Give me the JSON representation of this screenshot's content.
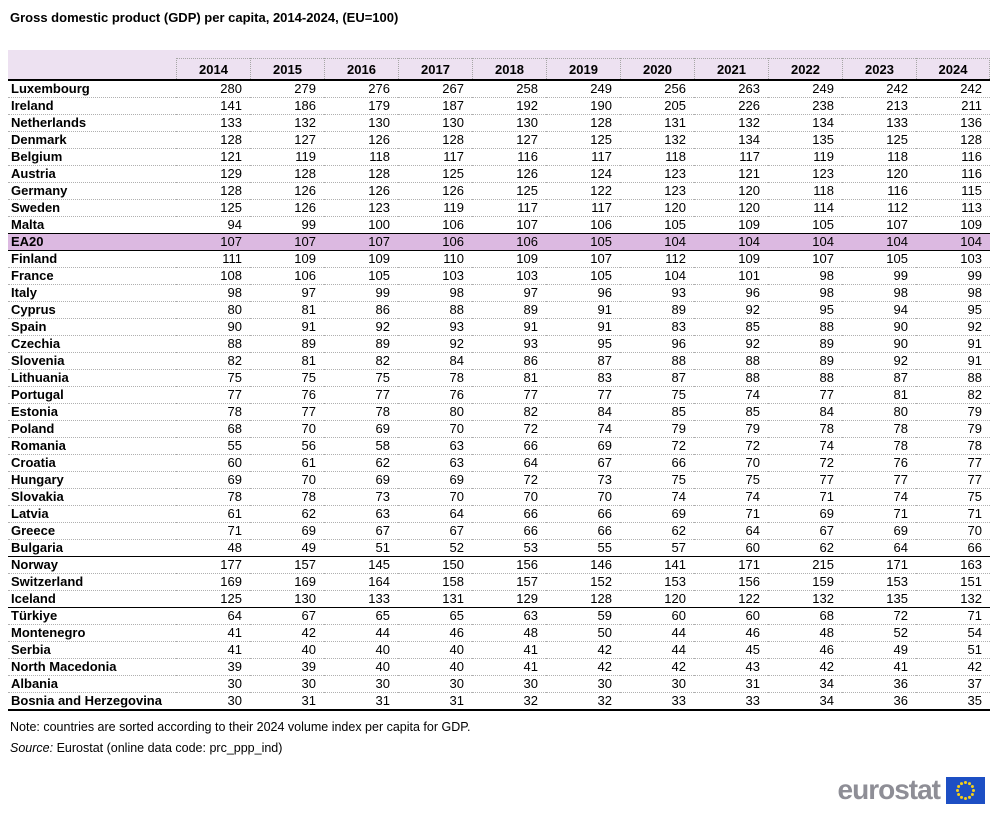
{
  "title": "Gross domestic product (GDP) per capita, 2014-2024, (EU=100)",
  "chart_data": {
    "type": "table",
    "title": "Gross domestic product (GDP) per capita, 2014-2024, (EU=100)",
    "columns": [
      "2014",
      "2015",
      "2016",
      "2017",
      "2018",
      "2019",
      "2020",
      "2021",
      "2022",
      "2023",
      "2024"
    ],
    "rows": [
      {
        "name": "Luxembourg",
        "values": [
          280,
          279,
          276,
          267,
          258,
          249,
          256,
          263,
          249,
          242,
          242
        ],
        "highlight": false,
        "divider_after": false
      },
      {
        "name": "Ireland",
        "values": [
          141,
          186,
          179,
          187,
          192,
          190,
          205,
          226,
          238,
          213,
          211
        ],
        "highlight": false,
        "divider_after": false
      },
      {
        "name": "Netherlands",
        "values": [
          133,
          132,
          130,
          130,
          130,
          128,
          131,
          132,
          134,
          133,
          136
        ],
        "highlight": false,
        "divider_after": false
      },
      {
        "name": "Denmark",
        "values": [
          128,
          127,
          126,
          128,
          127,
          125,
          132,
          134,
          135,
          125,
          128
        ],
        "highlight": false,
        "divider_after": false
      },
      {
        "name": "Belgium",
        "values": [
          121,
          119,
          118,
          117,
          116,
          117,
          118,
          117,
          119,
          118,
          116
        ],
        "highlight": false,
        "divider_after": false
      },
      {
        "name": "Austria",
        "values": [
          129,
          128,
          128,
          125,
          126,
          124,
          123,
          121,
          123,
          120,
          116
        ],
        "highlight": false,
        "divider_after": false
      },
      {
        "name": "Germany",
        "values": [
          128,
          126,
          126,
          126,
          125,
          122,
          123,
          120,
          118,
          116,
          115
        ],
        "highlight": false,
        "divider_after": false
      },
      {
        "name": "Sweden",
        "values": [
          125,
          126,
          123,
          119,
          117,
          117,
          120,
          120,
          114,
          112,
          113
        ],
        "highlight": false,
        "divider_after": false
      },
      {
        "name": "Malta",
        "values": [
          94,
          99,
          100,
          106,
          107,
          106,
          105,
          109,
          105,
          107,
          109
        ],
        "highlight": false,
        "divider_after": true
      },
      {
        "name": "EA20",
        "values": [
          107,
          107,
          107,
          106,
          106,
          105,
          104,
          104,
          104,
          104,
          104
        ],
        "highlight": true,
        "divider_after": true
      },
      {
        "name": "Finland",
        "values": [
          111,
          109,
          109,
          110,
          109,
          107,
          112,
          109,
          107,
          105,
          103
        ],
        "highlight": false,
        "divider_after": false
      },
      {
        "name": "France",
        "values": [
          108,
          106,
          105,
          103,
          103,
          105,
          104,
          101,
          98,
          99,
          99
        ],
        "highlight": false,
        "divider_after": false
      },
      {
        "name": "Italy",
        "values": [
          98,
          97,
          99,
          98,
          97,
          96,
          93,
          96,
          98,
          98,
          98
        ],
        "highlight": false,
        "divider_after": false
      },
      {
        "name": "Cyprus",
        "values": [
          80,
          81,
          86,
          88,
          89,
          91,
          89,
          92,
          95,
          94,
          95
        ],
        "highlight": false,
        "divider_after": false
      },
      {
        "name": "Spain",
        "values": [
          90,
          91,
          92,
          93,
          91,
          91,
          83,
          85,
          88,
          90,
          92
        ],
        "highlight": false,
        "divider_after": false
      },
      {
        "name": "Czechia",
        "values": [
          88,
          89,
          89,
          92,
          93,
          95,
          96,
          92,
          89,
          90,
          91
        ],
        "highlight": false,
        "divider_after": false
      },
      {
        "name": "Slovenia",
        "values": [
          82,
          81,
          82,
          84,
          86,
          87,
          88,
          88,
          89,
          92,
          91
        ],
        "highlight": false,
        "divider_after": false
      },
      {
        "name": "Lithuania",
        "values": [
          75,
          75,
          75,
          78,
          81,
          83,
          87,
          88,
          88,
          87,
          88
        ],
        "highlight": false,
        "divider_after": false
      },
      {
        "name": "Portugal",
        "values": [
          77,
          76,
          77,
          76,
          77,
          77,
          75,
          74,
          77,
          81,
          82
        ],
        "highlight": false,
        "divider_after": false
      },
      {
        "name": "Estonia",
        "values": [
          78,
          77,
          78,
          80,
          82,
          84,
          85,
          85,
          84,
          80,
          79
        ],
        "highlight": false,
        "divider_after": false
      },
      {
        "name": "Poland",
        "values": [
          68,
          70,
          69,
          70,
          72,
          74,
          79,
          79,
          78,
          78,
          79
        ],
        "highlight": false,
        "divider_after": false
      },
      {
        "name": "Romania",
        "values": [
          55,
          56,
          58,
          63,
          66,
          69,
          72,
          72,
          74,
          78,
          78
        ],
        "highlight": false,
        "divider_after": false
      },
      {
        "name": "Croatia",
        "values": [
          60,
          61,
          62,
          63,
          64,
          67,
          66,
          70,
          72,
          76,
          77
        ],
        "highlight": false,
        "divider_after": false
      },
      {
        "name": "Hungary",
        "values": [
          69,
          70,
          69,
          69,
          72,
          73,
          75,
          75,
          77,
          77,
          77
        ],
        "highlight": false,
        "divider_after": false
      },
      {
        "name": "Slovakia",
        "values": [
          78,
          78,
          73,
          70,
          70,
          70,
          74,
          74,
          71,
          74,
          75
        ],
        "highlight": false,
        "divider_after": false
      },
      {
        "name": "Latvia",
        "values": [
          61,
          62,
          63,
          64,
          66,
          66,
          69,
          71,
          69,
          71,
          71
        ],
        "highlight": false,
        "divider_after": false
      },
      {
        "name": "Greece",
        "values": [
          71,
          69,
          67,
          67,
          66,
          66,
          62,
          64,
          67,
          69,
          70
        ],
        "highlight": false,
        "divider_after": false
      },
      {
        "name": "Bulgaria",
        "values": [
          48,
          49,
          51,
          52,
          53,
          55,
          57,
          60,
          62,
          64,
          66
        ],
        "highlight": false,
        "divider_after": true
      },
      {
        "name": "Norway",
        "values": [
          177,
          157,
          145,
          150,
          156,
          146,
          141,
          171,
          215,
          171,
          163
        ],
        "highlight": false,
        "divider_after": false
      },
      {
        "name": "Switzerland",
        "values": [
          169,
          169,
          164,
          158,
          157,
          152,
          153,
          156,
          159,
          153,
          151
        ],
        "highlight": false,
        "divider_after": false
      },
      {
        "name": "Iceland",
        "values": [
          125,
          130,
          133,
          131,
          129,
          128,
          120,
          122,
          132,
          135,
          132
        ],
        "highlight": false,
        "divider_after": true
      },
      {
        "name": "Türkiye",
        "values": [
          64,
          67,
          65,
          65,
          63,
          59,
          60,
          60,
          68,
          72,
          71
        ],
        "highlight": false,
        "divider_after": false
      },
      {
        "name": "Montenegro",
        "values": [
          41,
          42,
          44,
          46,
          48,
          50,
          44,
          46,
          48,
          52,
          54
        ],
        "highlight": false,
        "divider_after": false
      },
      {
        "name": "Serbia",
        "values": [
          41,
          40,
          40,
          40,
          41,
          42,
          44,
          45,
          46,
          49,
          51
        ],
        "highlight": false,
        "divider_after": false
      },
      {
        "name": "North Macedonia",
        "values": [
          39,
          39,
          40,
          40,
          41,
          42,
          42,
          43,
          42,
          41,
          42
        ],
        "highlight": false,
        "divider_after": false
      },
      {
        "name": "Albania",
        "values": [
          30,
          30,
          30,
          30,
          30,
          30,
          30,
          31,
          34,
          36,
          37
        ],
        "highlight": false,
        "divider_after": false
      },
      {
        "name": "Bosnia and Herzegovina",
        "values": [
          30,
          31,
          31,
          31,
          32,
          32,
          33,
          33,
          34,
          36,
          35
        ],
        "highlight": false,
        "divider_after": false
      }
    ]
  },
  "notes": {
    "note": "Note: countries are sorted according to their 2024 volume index per capita for GDP.",
    "source_label": "Source:",
    "source_text": "Eurostat (online data code: prc_ppp_ind)"
  },
  "footer": {
    "logo_text": "eurostat"
  },
  "colors": {
    "header_bg": "#ede1f1",
    "highlight_bg": "#dcb9e1",
    "logo_gray": "#8e8e96",
    "flag_blue": "#1d4fc4",
    "star_yellow": "#f7d117"
  }
}
